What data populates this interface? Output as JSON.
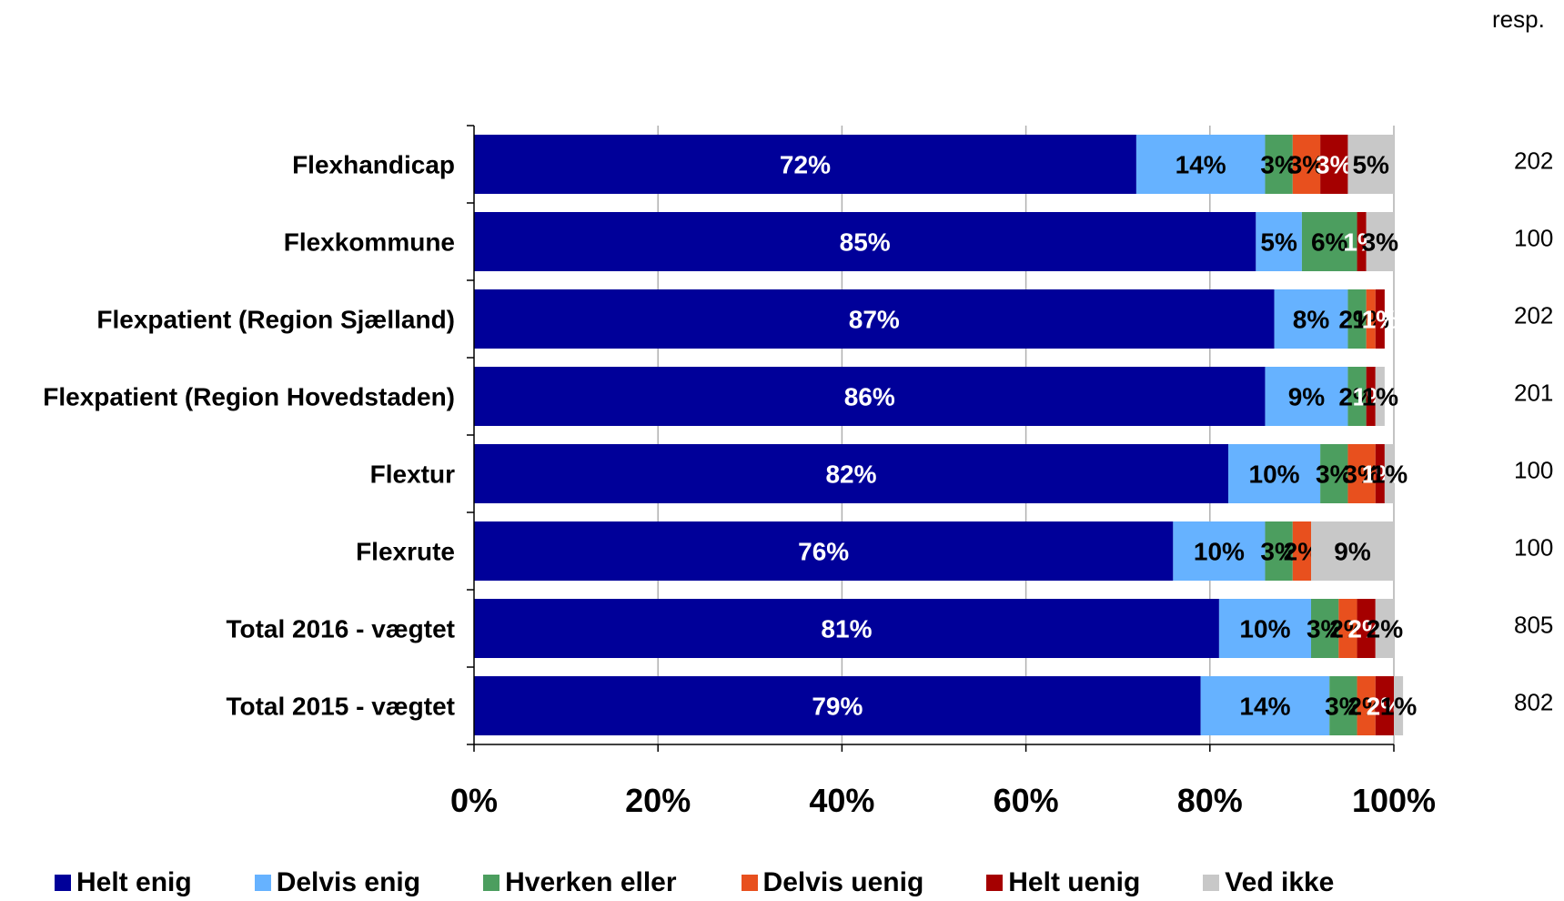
{
  "chart_data": {
    "type": "bar",
    "orientation": "horizontal",
    "stacked": "percent",
    "categories": [
      "Flexhandicap",
      "Flexkommune",
      "Flexpatient (Region Sjælland)",
      "Flexpatient (Region Hovedstaden)",
      "Flextur",
      "Flexrute",
      "Total  2016 - vægtet",
      "Total 2015 - vægtet"
    ],
    "series": [
      {
        "name": "Helt enig",
        "color": "#000099",
        "values": [
          72,
          85,
          87,
          86,
          82,
          76,
          81,
          79
        ],
        "label_color": "#ffffff"
      },
      {
        "name": "Delvis enig",
        "color": "#66B2FF",
        "values": [
          14,
          5,
          8,
          9,
          10,
          10,
          10,
          14
        ],
        "label_color": "#000000"
      },
      {
        "name": "Hverken eller",
        "color": "#4C9E5F",
        "values": [
          3,
          6,
          2,
          2,
          3,
          3,
          3,
          3
        ],
        "label_color": "#000000"
      },
      {
        "name": "Delvis uenig",
        "color": "#E8501E",
        "values": [
          3,
          0,
          1,
          0,
          3,
          2,
          2,
          2
        ],
        "label_color": "#000000"
      },
      {
        "name": "Helt uenig",
        "color": "#A50000",
        "values": [
          3,
          1,
          1,
          1,
          1,
          0,
          2,
          2
        ],
        "label_color": "#ffffff"
      },
      {
        "name": "Ved ikke",
        "color": "#C8C8C8",
        "values": [
          5,
          3,
          0,
          1,
          1,
          9,
          2,
          1
        ],
        "label_color": "#000000"
      }
    ],
    "xlim": [
      0,
      100
    ],
    "x_ticks": [
      "0%",
      "20%",
      "40%",
      "60%",
      "80%",
      "100%"
    ],
    "gridlines": true,
    "legend_position": "bottom",
    "resp_header": "resp.",
    "resp_counts": [
      "202",
      "100",
      "202",
      "201",
      "100",
      "100",
      "805",
      "802"
    ]
  }
}
